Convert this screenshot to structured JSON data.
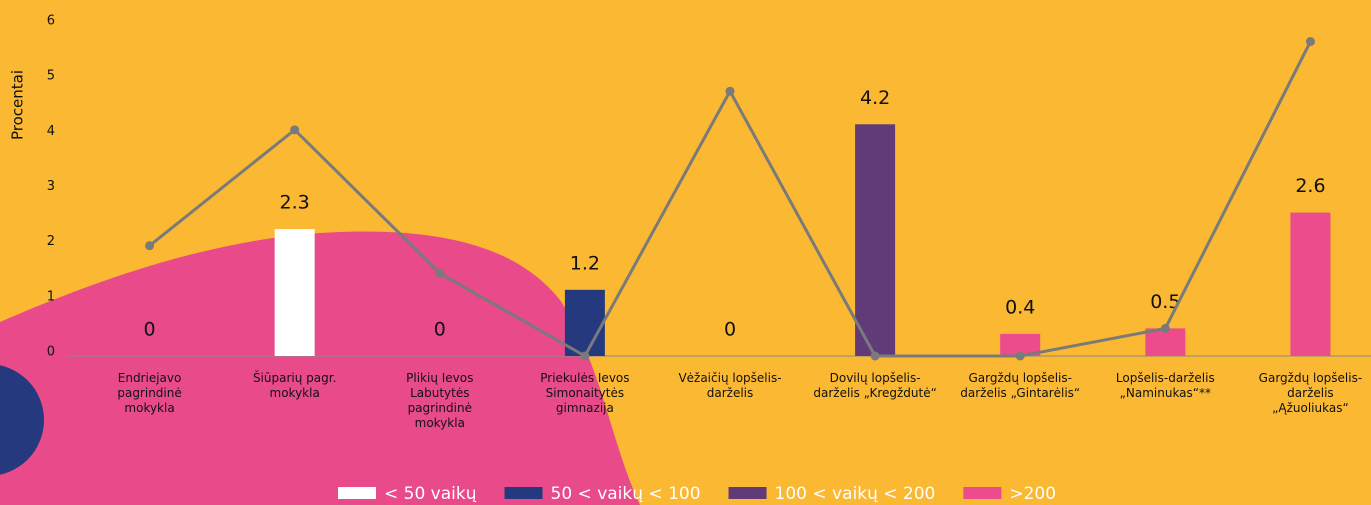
{
  "chart_data": {
    "type": "bar",
    "y_label": "Procentai",
    "categories": [
      [
        "Endriejavo",
        "pagrindinė",
        "mokykla"
      ],
      [
        "Šiūparių pagr.",
        "mokykla"
      ],
      [
        "Plikių Ievos",
        "Labutytės",
        "pagrindinė",
        "mokykla"
      ],
      [
        "Priekulės Ievos",
        "Simonaitytės",
        "gimnazija"
      ],
      [
        "Vėžaičių lopšelis-",
        "darželis"
      ],
      [
        "Dovilų lopšelis-",
        "darželis „Kregždutė“"
      ],
      [
        "Gargždų lopšelis-",
        "darželis „Gintarėlis“"
      ],
      [
        "Lopšelis-darželis",
        "„Naminukas“**"
      ],
      [
        "Gargždų lopšelis-",
        "darželis",
        "„Ąžuoliukas“"
      ]
    ],
    "values": [
      0,
      2.3,
      0,
      1.2,
      0,
      4.2,
      0.4,
      0.5,
      2.6
    ],
    "colors": [
      null,
      "#ffffff",
      null,
      "#253a7e",
      null,
      "#613a78",
      "#ec4b8c",
      "#ec4b8c",
      "#ec4b8c"
    ],
    "line": {
      "color": "#7a7a7a",
      "values": [
        2,
        4.1,
        1.5,
        0,
        4.8,
        0,
        0,
        0.5,
        5.7
      ]
    },
    "legend": [
      {
        "name": "< 50 vaikų",
        "color": "#ffffff"
      },
      {
        "name": "50 < vaikų < 100",
        "color": "#253a7e"
      },
      {
        "name": "100 < vaikų < 200",
        "color": "#613a78"
      },
      {
        "name": ">200",
        "color": "#ec4b8c"
      }
    ],
    "ylim": [
      0,
      6
    ],
    "yticks": [
      0,
      1,
      2,
      3,
      4,
      5,
      6
    ]
  }
}
